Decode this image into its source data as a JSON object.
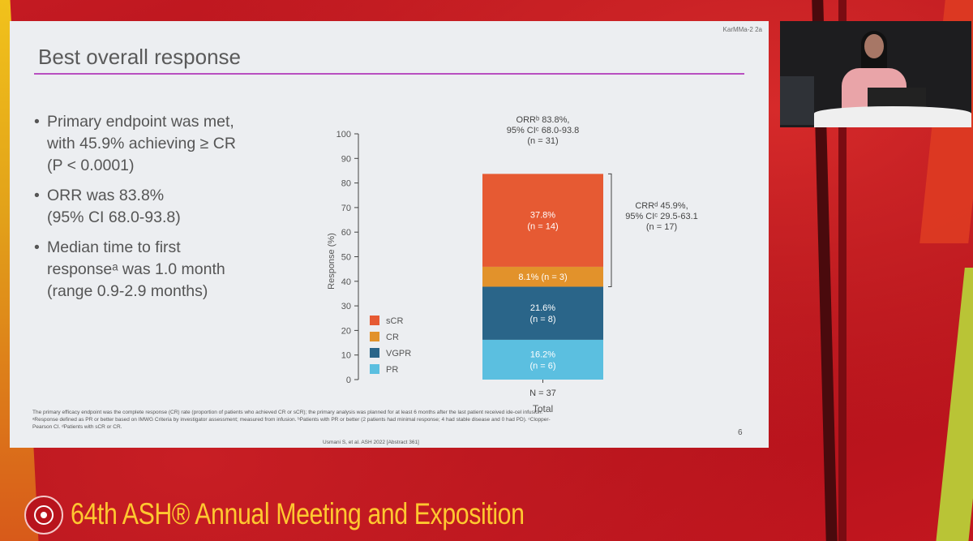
{
  "slide": {
    "tag": "KarMMa-2 2a",
    "title": "Best overall response",
    "bullets": [
      "Primary endpoint was met,\nwith 45.9% achieving ≥ CR\n(P < 0.0001)",
      "ORR was 83.8%\n(95% CI 68.0-93.8)",
      "Median time to first\nresponseᵃ was 1.0 month\n(range 0.9-2.9 months)"
    ],
    "footnote_lines": [
      "The primary efficacy endpoint was the complete response (CR) rate (proportion of patients who achieved CR or sCR); the primary analysis was planned for at least 6 months after the last patient received ide-cel infusion.",
      "ᵃResponse defined as PR or better based on IMWG Criteria by investigator assessment; measured from infusion. ᵇPatients with PR or better (2 patients had minimal response; 4 had stable disease and 0 had PD). ᶜClopper-",
      "Pearson CI. ᵈPatients with sCR or CR."
    ],
    "page_number": "6",
    "citation": "Usmani S, et al. ASH 2022 [Abstract 361]"
  },
  "banner": {
    "meeting": "64th ASH® Annual Meeting and Exposition"
  },
  "chart_data": {
    "type": "bar",
    "stacked": true,
    "categories": [
      "Total"
    ],
    "n_label": "N = 37",
    "xlabel": "Total",
    "ylabel": "Response (%)",
    "ylim": [
      0,
      100
    ],
    "yticks": [
      0,
      10,
      20,
      30,
      40,
      50,
      60,
      70,
      80,
      90,
      100
    ],
    "series": [
      {
        "name": "PR",
        "values": [
          16.2
        ],
        "label": "16.2%\n(n = 6)",
        "color": "#5bbfe0"
      },
      {
        "name": "VGPR",
        "values": [
          21.6
        ],
        "label": "21.6%\n(n = 8)",
        "color": "#2a6589"
      },
      {
        "name": "CR",
        "values": [
          8.1
        ],
        "label": "8.1% (n = 3)",
        "color": "#e2922b"
      },
      {
        "name": "sCR",
        "values": [
          37.8
        ],
        "label": "37.8%\n(n = 14)",
        "color": "#e65a33"
      }
    ],
    "legend_order": [
      "sCR",
      "CR",
      "VGPR",
      "PR"
    ],
    "legend_position": "bottom-left",
    "annotations": {
      "orr": "ORRᵇ 83.8%,\n95% CIᶜ 68.0-93.8\n(n = 31)",
      "crr": "CRRᵈ 45.9%,\n95% CIᶜ 29.5-63.1\n(n = 17)"
    }
  }
}
